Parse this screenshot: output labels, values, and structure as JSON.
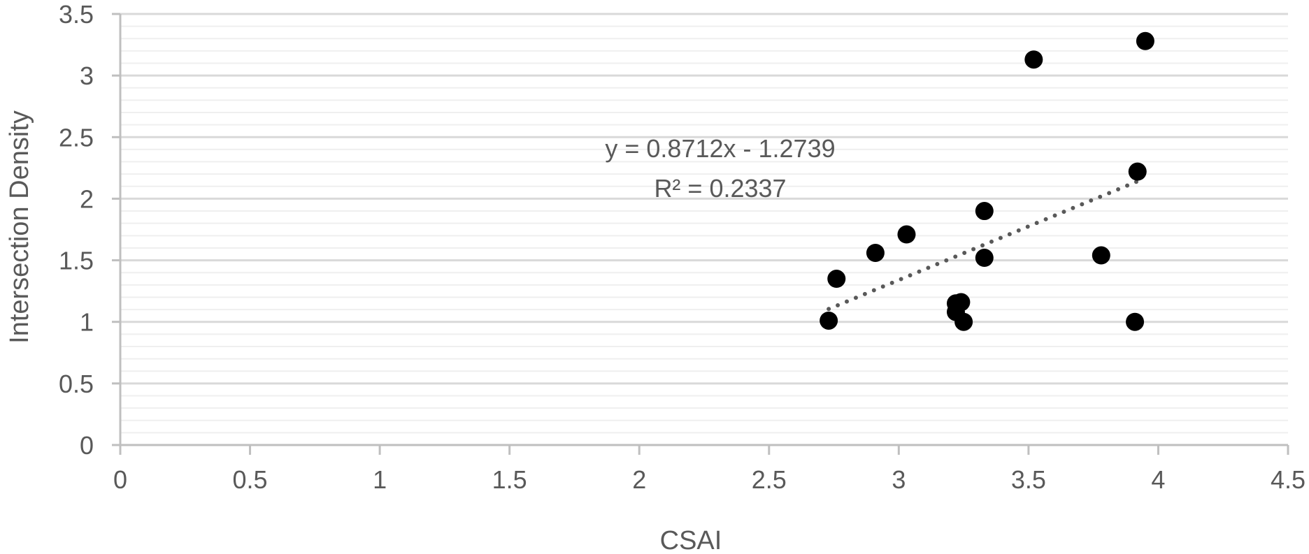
{
  "chart_data": {
    "type": "scatter",
    "xlabel": "CSAI",
    "ylabel": "Intersection Density",
    "xlim": [
      0,
      4.5
    ],
    "ylim": [
      0,
      3.5
    ],
    "x_ticks": [
      "0",
      "0.5",
      "1",
      "1.5",
      "2",
      "2.5",
      "3",
      "3.5",
      "4",
      "4.5"
    ],
    "y_ticks": [
      "0",
      "0.5",
      "1",
      "1.5",
      "2",
      "2.5",
      "3",
      "3.5"
    ],
    "grid": true,
    "series": [
      {
        "points": [
          {
            "x": 2.73,
            "y": 1.01
          },
          {
            "x": 2.76,
            "y": 1.35
          },
          {
            "x": 2.91,
            "y": 1.56
          },
          {
            "x": 3.03,
            "y": 1.71
          },
          {
            "x": 3.22,
            "y": 1.15
          },
          {
            "x": 3.22,
            "y": 1.08
          },
          {
            "x": 3.24,
            "y": 1.16
          },
          {
            "x": 3.25,
            "y": 1.0
          },
          {
            "x": 3.33,
            "y": 1.9
          },
          {
            "x": 3.33,
            "y": 1.52
          },
          {
            "x": 3.52,
            "y": 3.13
          },
          {
            "x": 3.78,
            "y": 1.54
          },
          {
            "x": 3.91,
            "y": 1.0
          },
          {
            "x": 3.92,
            "y": 2.22
          },
          {
            "x": 3.95,
            "y": 3.28
          }
        ]
      }
    ],
    "trendline": {
      "type": "linear",
      "slope": 0.8712,
      "intercept": -1.2739,
      "x_range": [
        2.73,
        3.95
      ],
      "style": "dotted",
      "equation_label": "y = 0.8712x - 1.2739",
      "r2_label": "R² = 0.2337"
    },
    "colors": {
      "marker": "#000000",
      "trendline": "#595959",
      "major_grid": "#d9d9d9",
      "minor_grid": "#efefef",
      "axis": "#bfbfbf",
      "text": "#595959"
    }
  }
}
